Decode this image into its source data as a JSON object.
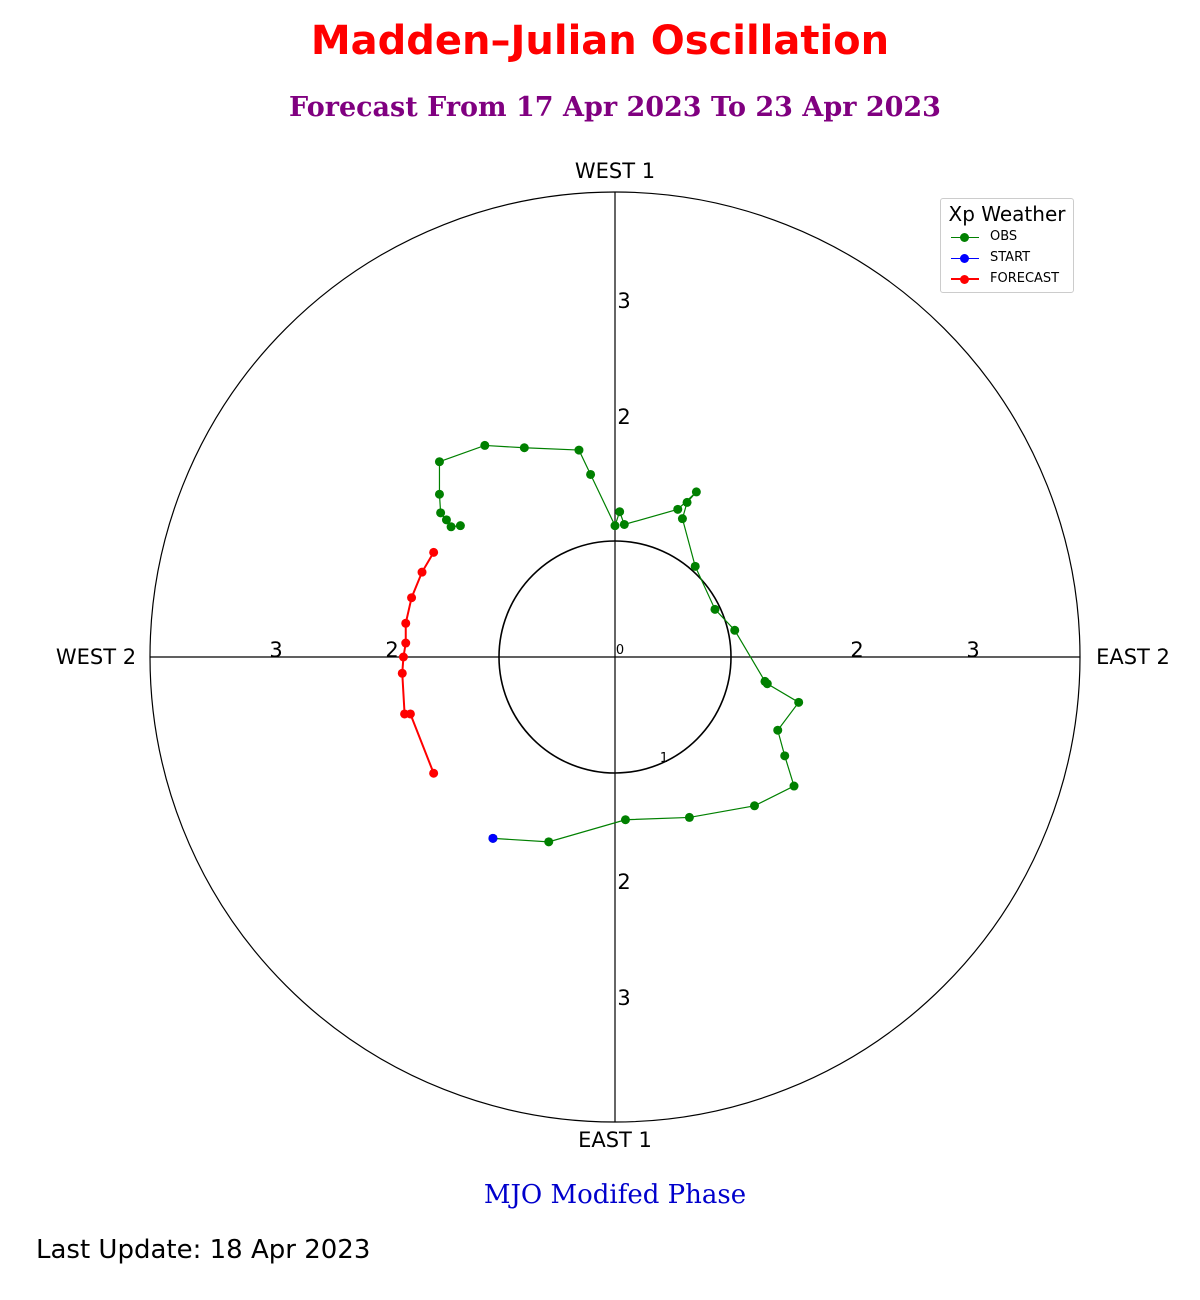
{
  "title": "Madden–Julian Oscillation",
  "subtitle": "Forecast From 17 Apr 2023 To 23 Apr 2023",
  "xlabel": "MJO Modifed Phase",
  "footer": "Last Update: 18 Apr 2023",
  "colors": {
    "title": "#ff0000",
    "subtitle": "#800080",
    "xlabel": "#0000cc",
    "obs": "#008000",
    "start": "#0000ff",
    "forecast": "#ff0000"
  },
  "legend": {
    "title": "Xp Weather",
    "items": [
      {
        "label": "OBS",
        "color": "#008000"
      },
      {
        "label": "START",
        "color": "#0000ff"
      },
      {
        "label": "FORECAST",
        "color": "#ff0000"
      }
    ]
  },
  "chart_data": {
    "type": "scatter",
    "title": "Madden–Julian Oscillation",
    "subtitle": "Forecast From 17 Apr 2023 To 23 Apr 2023",
    "xlabel": "MJO Modifed Phase",
    "xlim": [
      -4,
      4
    ],
    "ylim": [
      -4,
      4
    ],
    "grid": false,
    "legend_position": "top-right",
    "unit_circle_radius": 1,
    "direction_labels": {
      "top": "WEST 1",
      "bottom": "EAST 1",
      "left": "WEST 2",
      "right": "EAST 2"
    },
    "tick_labels": {
      "center": "0",
      "circle": "1",
      "top": [
        "2",
        "3"
      ],
      "bottom": [
        "2",
        "3"
      ],
      "left": [
        "2",
        "3"
      ],
      "right": [
        "2",
        "3"
      ]
    },
    "series": [
      {
        "name": "START",
        "color": "#0000ff",
        "x": [
          -1.05
        ],
        "y": [
          -1.56
        ]
      },
      {
        "name": "OBS",
        "color": "#008000",
        "x": [
          -1.05,
          -0.57,
          0.09,
          0.64,
          1.2,
          1.54,
          1.46,
          1.4,
          1.58,
          1.31,
          1.29,
          1.03,
          0.86,
          0.69,
          0.58,
          0.62,
          0.7,
          0.54,
          0.08,
          0.04,
          0.0,
          -0.21,
          -0.31,
          -0.78,
          -1.12,
          -1.51,
          -1.51,
          -1.5,
          -1.45,
          -1.41,
          -1.33
        ],
        "y": [
          -1.56,
          -1.59,
          -1.4,
          -1.38,
          -1.28,
          -1.11,
          -0.85,
          -0.63,
          -0.39,
          -0.23,
          -0.21,
          0.23,
          0.41,
          0.78,
          1.19,
          1.33,
          1.42,
          1.27,
          1.14,
          1.25,
          1.13,
          1.57,
          1.78,
          1.8,
          1.82,
          1.68,
          1.4,
          1.24,
          1.18,
          1.12,
          1.13
        ]
      },
      {
        "name": "FORECAST",
        "color": "#ff0000",
        "x": [
          -1.56,
          -1.66,
          -1.75,
          -1.8,
          -1.8,
          -1.82,
          -1.83,
          -1.81,
          -1.76,
          -1.56
        ],
        "y": [
          0.9,
          0.73,
          0.51,
          0.29,
          0.12,
          -0.0,
          -0.14,
          -0.49,
          -0.49,
          -1.0
        ]
      }
    ]
  }
}
